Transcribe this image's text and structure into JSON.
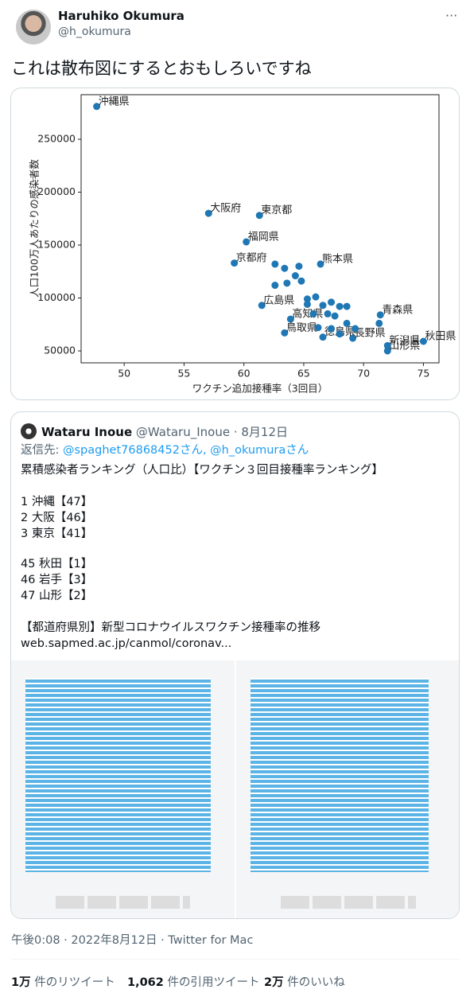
{
  "tweet": {
    "name": "Haruhiko Okumura",
    "handle": "@h_okumura",
    "text": "これは散布図にするとおもしろいですね"
  },
  "chart_data": {
    "type": "scatter",
    "xlabel": "ワクチン追加接種率（3回目）",
    "ylabel": "人口100万人あたりの感染者数",
    "color": "#1f77b4",
    "xlim": [
      46.4,
      76.3
    ],
    "ylim": [
      38700,
      292100
    ],
    "xticks": [
      50,
      55,
      60,
      65,
      70,
      75
    ],
    "yticks": [
      50000,
      100000,
      150000,
      200000,
      250000
    ],
    "labels": [
      "沖縄県",
      "大阪府",
      "東京都",
      "福岡県",
      "京都府",
      "熊本県",
      "広島県",
      "高知県",
      "鳥取県",
      "青森県",
      "秋田県",
      "山形県",
      "新潟県",
      "長野県",
      "徳島県",
      null,
      null,
      null,
      null,
      null,
      null,
      null,
      null,
      null,
      null,
      null,
      null,
      null,
      null,
      null,
      null,
      null,
      null,
      null,
      null,
      null,
      null,
      null
    ],
    "x": [
      47.7,
      57.05,
      61.3,
      60.2,
      59.2,
      66.4,
      61.5,
      63.9,
      63.4,
      71.4,
      75.0,
      72.0,
      72.0,
      69.1,
      66.6,
      62.6,
      63.4,
      64.6,
      64.3,
      64.8,
      62.6,
      63.6,
      65.3,
      66.0,
      65.3,
      66.6,
      67.3,
      68.0,
      68.6,
      65.8,
      67.0,
      67.6,
      66.2,
      67.3,
      68.6,
      68.0,
      69.3,
      71.3
    ],
    "y": [
      281000,
      180000,
      178000,
      153000,
      133000,
      132000,
      93000,
      80000,
      67000,
      84000,
      59000,
      50000,
      55000,
      62000,
      63000,
      132000,
      128000,
      130000,
      121000,
      116000,
      112000,
      114000,
      99000,
      101000,
      94000,
      93000,
      96000,
      92000,
      92000,
      85000,
      85000,
      83000,
      72000,
      71000,
      76000,
      66000,
      71000,
      76000
    ]
  },
  "quoted": {
    "name": "Wataru Inoue",
    "handle_date": "@Wataru_Inoue · 8月12日",
    "reply_prefix": "返信先:",
    "reply_to": "@spaghet76868452さん, @h_okumuraさん",
    "heading": "累積感染者ランキング（人口比）【ワクチン３回目接種率ランキング】",
    "top3": [
      "1 沖縄【47】",
      "2 大阪【46】",
      "3 東京【41】"
    ],
    "bottom3": [
      "45 秋田【1】",
      "46 岩手【3】",
      "47 山形【2】"
    ],
    "link_title": "【都道府県別】新型コロナウイルスワクチン接種率の推移",
    "link_url": "web.sapmed.ac.jp/canmol/coronav..."
  },
  "meta": "午後0:08 · 2022年8月12日 · Twitter for Mac",
  "stats": [
    {
      "count": "1万",
      "label": "件のリツイート"
    },
    {
      "count": "1,062",
      "label": "件の引用ツイート"
    },
    {
      "count": "2万",
      "label": "件のいいね"
    }
  ]
}
